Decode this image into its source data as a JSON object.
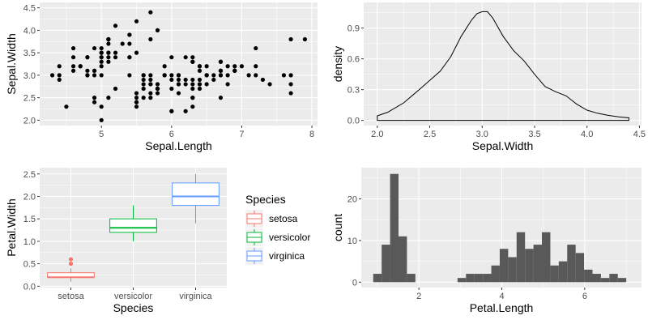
{
  "chart_data": [
    {
      "type": "scatter",
      "xlabel": "Sepal.Length",
      "ylabel": "Sepal.Width",
      "xlim": [
        4.12,
        8.08
      ],
      "ylim": [
        1.88,
        4.62
      ],
      "xticks": [
        5,
        6,
        7,
        8
      ],
      "xtick_labels": [
        "5",
        "6",
        "7",
        "8"
      ],
      "yticks": [
        2.0,
        2.5,
        3.0,
        3.5,
        4.0,
        4.5
      ],
      "ytick_labels": [
        "2.0",
        "2.5",
        "3.0",
        "3.5",
        "4.0",
        "4.5"
      ],
      "grid": true,
      "point_color": "#000000",
      "points": [
        [
          5.1,
          3.5
        ],
        [
          4.9,
          3.0
        ],
        [
          4.7,
          3.2
        ],
        [
          4.6,
          3.1
        ],
        [
          5.0,
          3.6
        ],
        [
          5.4,
          3.9
        ],
        [
          4.6,
          3.4
        ],
        [
          5.0,
          3.4
        ],
        [
          4.4,
          2.9
        ],
        [
          4.9,
          3.1
        ],
        [
          5.4,
          3.7
        ],
        [
          4.8,
          3.4
        ],
        [
          4.8,
          3.0
        ],
        [
          4.3,
          3.0
        ],
        [
          5.8,
          4.0
        ],
        [
          5.7,
          4.4
        ],
        [
          5.4,
          3.9
        ],
        [
          5.1,
          3.5
        ],
        [
          5.7,
          3.8
        ],
        [
          5.1,
          3.8
        ],
        [
          5.4,
          3.4
        ],
        [
          5.1,
          3.7
        ],
        [
          4.6,
          3.6
        ],
        [
          5.1,
          3.3
        ],
        [
          4.8,
          3.4
        ],
        [
          5.0,
          3.0
        ],
        [
          5.0,
          3.4
        ],
        [
          5.2,
          3.5
        ],
        [
          5.2,
          3.4
        ],
        [
          4.7,
          3.2
        ],
        [
          4.8,
          3.1
        ],
        [
          5.4,
          3.4
        ],
        [
          5.2,
          4.1
        ],
        [
          5.5,
          4.2
        ],
        [
          4.9,
          3.1
        ],
        [
          5.0,
          3.2
        ],
        [
          5.5,
          3.5
        ],
        [
          4.9,
          3.6
        ],
        [
          4.4,
          3.0
        ],
        [
          5.1,
          3.4
        ],
        [
          5.0,
          3.5
        ],
        [
          4.5,
          2.3
        ],
        [
          4.4,
          3.2
        ],
        [
          5.0,
          3.5
        ],
        [
          5.1,
          3.8
        ],
        [
          4.8,
          3.0
        ],
        [
          5.1,
          3.8
        ],
        [
          4.6,
          3.2
        ],
        [
          5.3,
          3.7
        ],
        [
          5.0,
          3.3
        ],
        [
          7.0,
          3.2
        ],
        [
          6.4,
          3.2
        ],
        [
          6.9,
          3.1
        ],
        [
          5.5,
          2.3
        ],
        [
          6.5,
          2.8
        ],
        [
          5.7,
          2.8
        ],
        [
          6.3,
          3.3
        ],
        [
          4.9,
          2.4
        ],
        [
          6.6,
          2.9
        ],
        [
          5.2,
          2.7
        ],
        [
          5.0,
          2.0
        ],
        [
          5.9,
          3.0
        ],
        [
          6.0,
          2.2
        ],
        [
          6.1,
          2.9
        ],
        [
          5.6,
          2.9
        ],
        [
          6.7,
          3.1
        ],
        [
          5.6,
          3.0
        ],
        [
          5.8,
          2.7
        ],
        [
          6.2,
          2.2
        ],
        [
          5.6,
          2.5
        ],
        [
          5.9,
          3.2
        ],
        [
          6.1,
          2.8
        ],
        [
          6.3,
          2.5
        ],
        [
          6.1,
          2.8
        ],
        [
          6.4,
          2.9
        ],
        [
          6.6,
          3.0
        ],
        [
          6.8,
          2.8
        ],
        [
          6.7,
          3.0
        ],
        [
          6.0,
          2.9
        ],
        [
          5.7,
          2.6
        ],
        [
          5.5,
          2.4
        ],
        [
          5.5,
          2.4
        ],
        [
          5.8,
          2.7
        ],
        [
          6.0,
          2.7
        ],
        [
          5.4,
          3.0
        ],
        [
          6.0,
          3.4
        ],
        [
          6.7,
          3.1
        ],
        [
          6.3,
          2.3
        ],
        [
          5.6,
          3.0
        ],
        [
          5.5,
          2.5
        ],
        [
          5.5,
          2.6
        ],
        [
          6.1,
          3.0
        ],
        [
          5.8,
          2.6
        ],
        [
          5.0,
          2.3
        ],
        [
          5.6,
          2.7
        ],
        [
          5.7,
          3.0
        ],
        [
          5.7,
          2.9
        ],
        [
          6.2,
          2.9
        ],
        [
          5.1,
          2.5
        ],
        [
          5.7,
          2.8
        ],
        [
          6.3,
          3.3
        ],
        [
          5.8,
          2.7
        ],
        [
          7.1,
          3.0
        ],
        [
          6.3,
          2.9
        ],
        [
          6.5,
          3.0
        ],
        [
          7.6,
          3.0
        ],
        [
          4.9,
          2.5
        ],
        [
          7.3,
          2.9
        ],
        [
          6.7,
          2.5
        ],
        [
          7.2,
          3.6
        ],
        [
          6.5,
          3.2
        ],
        [
          6.4,
          2.7
        ],
        [
          6.8,
          3.0
        ],
        [
          5.7,
          2.5
        ],
        [
          5.8,
          2.8
        ],
        [
          6.4,
          3.2
        ],
        [
          6.5,
          3.0
        ],
        [
          7.7,
          3.8
        ],
        [
          7.7,
          2.6
        ],
        [
          6.0,
          2.2
        ],
        [
          6.9,
          3.2
        ],
        [
          5.6,
          2.8
        ],
        [
          7.7,
          2.8
        ],
        [
          6.3,
          2.7
        ],
        [
          6.7,
          3.3
        ],
        [
          7.2,
          3.2
        ],
        [
          6.2,
          2.8
        ],
        [
          6.1,
          3.0
        ],
        [
          6.4,
          2.8
        ],
        [
          7.2,
          3.0
        ],
        [
          7.4,
          2.8
        ],
        [
          7.9,
          3.8
        ],
        [
          6.4,
          2.8
        ],
        [
          6.3,
          2.8
        ],
        [
          6.1,
          2.6
        ],
        [
          7.7,
          3.0
        ],
        [
          6.3,
          3.4
        ],
        [
          6.4,
          3.1
        ],
        [
          6.0,
          3.0
        ],
        [
          6.9,
          3.1
        ],
        [
          6.7,
          3.1
        ],
        [
          6.9,
          3.1
        ],
        [
          5.8,
          2.7
        ],
        [
          6.8,
          3.2
        ],
        [
          6.7,
          3.3
        ],
        [
          6.7,
          3.0
        ],
        [
          6.3,
          2.5
        ],
        [
          6.5,
          3.0
        ],
        [
          6.2,
          3.4
        ],
        [
          5.9,
          3.0
        ]
      ]
    },
    {
      "type": "line",
      "xlabel": "Sepal.Width",
      "ylabel": "density",
      "xlim": [
        1.87,
        4.52
      ],
      "ylim": [
        -0.05,
        1.15
      ],
      "xticks": [
        2.0,
        2.5,
        3.0,
        3.5,
        4.0,
        4.5
      ],
      "xtick_labels": [
        "2.0",
        "2.5",
        "3.0",
        "3.5",
        "4.0",
        "4.5"
      ],
      "yticks": [
        0.0,
        0.3,
        0.6,
        0.9
      ],
      "ytick_labels": [
        "0.0",
        "0.3",
        "0.6",
        "0.9"
      ],
      "grid": true,
      "x": [
        2.0,
        2.1,
        2.25,
        2.4,
        2.5,
        2.6,
        2.7,
        2.8,
        2.9,
        2.95,
        3.0,
        3.05,
        3.1,
        3.2,
        3.3,
        3.4,
        3.5,
        3.6,
        3.7,
        3.8,
        3.9,
        4.0,
        4.1,
        4.2,
        4.3,
        4.4
      ],
      "y": [
        0.045,
        0.08,
        0.17,
        0.3,
        0.39,
        0.48,
        0.62,
        0.82,
        0.98,
        1.04,
        1.06,
        1.06,
        1.0,
        0.82,
        0.68,
        0.58,
        0.45,
        0.33,
        0.28,
        0.24,
        0.16,
        0.1,
        0.07,
        0.05,
        0.035,
        0.025
      ]
    },
    {
      "type": "box",
      "xlabel": "Species",
      "ylabel": "Petal.Width",
      "ylim": [
        -0.03,
        2.64
      ],
      "categories": [
        "setosa",
        "versicolor",
        "virginica"
      ],
      "yticks": [
        0.0,
        0.5,
        1.0,
        1.5,
        2.0,
        2.5
      ],
      "ytick_labels": [
        "0.0",
        "0.5",
        "1.0",
        "1.5",
        "2.0",
        "2.5"
      ],
      "grid": true,
      "legend": {
        "title": "Species",
        "position": "right",
        "items": [
          "setosa",
          "versicolor",
          "virginica"
        ]
      },
      "series": [
        {
          "name": "setosa",
          "color": "#F8766D",
          "min": 0.1,
          "q1": 0.2,
          "median": 0.2,
          "q3": 0.3,
          "max": 0.4,
          "outliers": [
            0.5,
            0.6
          ]
        },
        {
          "name": "versicolor",
          "color": "#00BA38",
          "min": 1.0,
          "q1": 1.2,
          "median": 1.3,
          "q3": 1.5,
          "max": 1.8,
          "outliers": []
        },
        {
          "name": "virginica",
          "color": "#619CFF",
          "min": 1.4,
          "q1": 1.8,
          "median": 2.0,
          "q3": 2.3,
          "max": 2.5,
          "outliers": []
        }
      ]
    },
    {
      "type": "bar",
      "subtype": "histogram",
      "xlabel": "Petal.Length",
      "ylabel": "count",
      "xlim": [
        0.61,
        7.37
      ],
      "ylim": [
        -1.3,
        27.5
      ],
      "xticks": [
        2,
        4,
        6
      ],
      "xtick_labels": [
        "2",
        "4",
        "6"
      ],
      "yticks": [
        0,
        10,
        20
      ],
      "ytick_labels": [
        "0",
        "10",
        "20"
      ],
      "grid": true,
      "bar_color": "#595959",
      "bin_range": [
        1.0,
        6.9
      ],
      "bins": 30,
      "values": [
        2,
        9,
        26,
        11,
        2,
        0,
        0,
        0,
        0,
        0,
        1,
        2,
        2,
        2,
        4,
        8,
        6,
        12,
        8,
        9,
        12,
        4,
        5,
        9,
        7,
        3,
        2,
        1,
        2,
        1
      ]
    }
  ]
}
